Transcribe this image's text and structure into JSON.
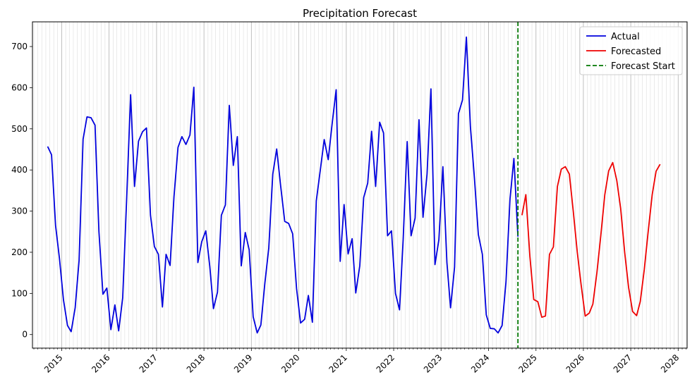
{
  "chart_data": {
    "type": "line",
    "title": "Precipitation Forecast",
    "xlabel": "",
    "ylabel": "",
    "xlim": [
      "2014-05-21",
      "2028-03-10"
    ],
    "ylim": [
      -33,
      760
    ],
    "yticks": [
      0,
      100,
      200,
      300,
      400,
      500,
      600,
      700
    ],
    "xticks": [
      "2015",
      "2016",
      "2017",
      "2018",
      "2019",
      "2020",
      "2021",
      "2022",
      "2023",
      "2024",
      "2025",
      "2026",
      "2027",
      "2028"
    ],
    "grid": true,
    "legend_position": "top-right",
    "series": [
      {
        "name": "Actual",
        "color": "#0000dd",
        "start": "2014-09",
        "values": [
          457,
          437,
          265,
          185,
          84,
          22,
          7,
          65,
          180,
          475,
          529,
          527,
          509,
          250,
          98,
          113,
          12,
          72,
          9,
          89,
          325,
          583,
          360,
          470,
          493,
          502,
          290,
          214,
          195,
          67,
          195,
          168,
          335,
          455,
          481,
          462,
          485,
          601,
          175,
          226,
          252,
          165,
          63,
          103,
          290,
          315,
          557,
          411,
          481,
          167,
          248,
          206,
          43,
          4,
          23,
          125,
          210,
          390,
          451,
          360,
          275,
          270,
          245,
          112,
          28,
          37,
          95,
          30,
          325,
          400,
          474,
          425,
          515,
          595,
          178,
          316,
          196,
          233,
          101,
          167,
          333,
          368,
          494,
          360,
          516,
          490,
          240,
          252,
          100,
          60,
          230,
          469,
          240,
          283,
          522,
          285,
          390,
          597,
          170,
          230,
          408,
          175,
          65,
          164,
          537,
          570,
          723,
          505,
          380,
          243,
          195,
          48,
          15,
          14,
          4,
          22,
          128,
          330,
          428,
          238
        ]
      },
      {
        "name": "Forecasted",
        "color": "#ee0000",
        "start": "2024-09",
        "values": [
          290,
          340,
          190,
          85,
          80,
          42,
          45,
          195,
          213,
          360,
          402,
          408,
          390,
          300,
          200,
          120,
          45,
          52,
          74,
          150,
          240,
          340,
          398,
          418,
          375,
          307,
          200,
          115,
          56,
          46,
          80,
          158,
          250,
          340,
          397,
          414
        ]
      }
    ],
    "forecast_start": {
      "name": "Forecast Start",
      "color": "#007700",
      "date": "2024-08"
    }
  }
}
